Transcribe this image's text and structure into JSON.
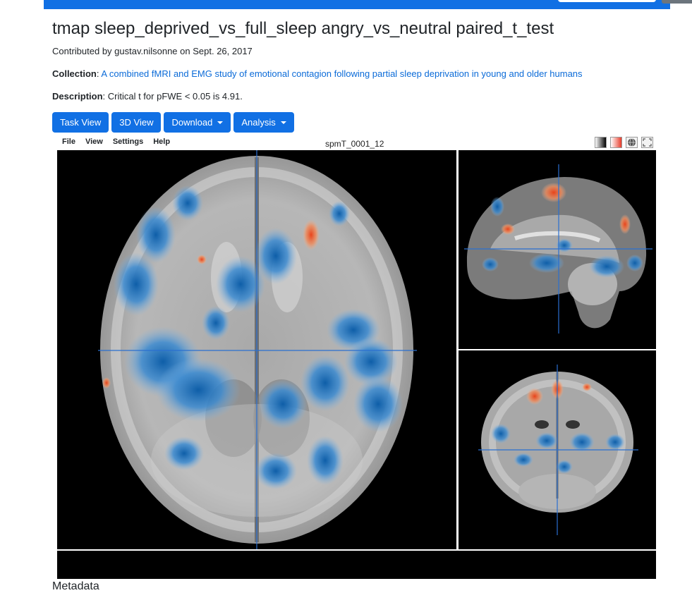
{
  "header": {
    "title": "tmap sleep_deprived_vs_full_sleep angry_vs_neutral paired_t_test"
  },
  "contributed": "Contributed by gustav.nilsonne on Sept. 26, 2017",
  "collection": {
    "label": "Collection",
    "link_text": "A combined fMRI and EMG study of emotional contagion following partial sleep deprivation in young and older humans"
  },
  "description": {
    "label": "Description",
    "text": "Critical t for pFWE < 0.05 is 4.91."
  },
  "buttons": {
    "task_view": "Task View",
    "view_3d": "3D View",
    "download": "Download",
    "analysis": "Analysis"
  },
  "viewer": {
    "menu": [
      "File",
      "View",
      "Settings",
      "Help"
    ],
    "title": "spmT_0001_12",
    "tools": [
      "grayscale-icon",
      "colormap-icon",
      "globe-icon",
      "fullscreen-icon"
    ]
  },
  "sections": {
    "metadata": "Metadata"
  },
  "colors": {
    "primary": "#1170e4",
    "link": "#0b6bd8",
    "positive": "#e8502a",
    "negative": "#1c6fb3"
  }
}
